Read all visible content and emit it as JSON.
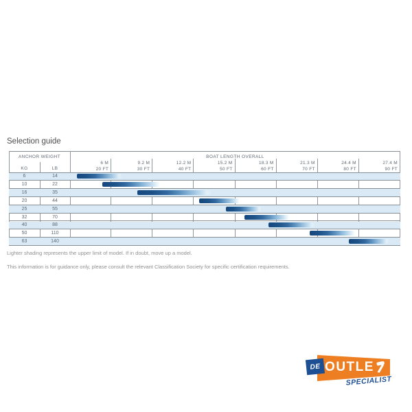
{
  "page": {
    "title": "Selection guide",
    "footnote1": "Lighter shading represents the upper limit of model. If in doubt, move up a model.",
    "footnote2": "This information is for guidance only, please consult the relevant Classification Society for specific certification requirements."
  },
  "chart_data": {
    "type": "bar",
    "subtype": "horizontal-range-gantt",
    "title": "Selection guide",
    "header": {
      "anchor_weight": "ANCHOR WEIGHT",
      "kg": "KG",
      "lb": "LB",
      "boat_length_overall": "BOAT LENGTH OVERALL"
    },
    "x_axis": {
      "ft_range": [
        10,
        90
      ],
      "gridlines": true,
      "ticks": [
        {
          "m": "6 M",
          "ft": "20 FT"
        },
        {
          "m": "9.2 M",
          "ft": "30 FT"
        },
        {
          "m": "12.2 M",
          "ft": "40 FT"
        },
        {
          "m": "15.2 M",
          "ft": "50 FT"
        },
        {
          "m": "18.3 M",
          "ft": "60 FT"
        },
        {
          "m": "21.3 M",
          "ft": "70 FT"
        },
        {
          "m": "24.4 M",
          "ft": "80 FT"
        },
        {
          "m": "27.4 M",
          "ft": "90 FT"
        }
      ]
    },
    "rows": [
      {
        "kg": "6",
        "lb": "14",
        "start_ft": 11.7,
        "end_ft": 22.6
      },
      {
        "kg": "10",
        "lb": "22",
        "start_ft": 17.9,
        "end_ft": 31.8
      },
      {
        "kg": "16",
        "lb": "35",
        "start_ft": 26.3,
        "end_ft": 44.5
      },
      {
        "kg": "20",
        "lb": "44",
        "start_ft": 41.2,
        "end_ft": 51.0
      },
      {
        "kg": "25",
        "lb": "55",
        "start_ft": 47.8,
        "end_ft": 56.4
      },
      {
        "kg": "32",
        "lb": "70",
        "start_ft": 52.3,
        "end_ft": 63.0
      },
      {
        "kg": "40",
        "lb": "88",
        "start_ft": 58.1,
        "end_ft": 69.3
      },
      {
        "kg": "50",
        "lb": "110",
        "start_ft": 68.0,
        "end_ft": 79.1
      },
      {
        "kg": "63",
        "lb": "140",
        "start_ft": 77.6,
        "end_ft": 87.4
      }
    ],
    "colors": {
      "bar_dark": "#15477d",
      "bar_light_fade": "#e3f0f9",
      "stripe_row": "#d9eaf6",
      "grid_line": "#8d959d",
      "text": "#5e6872"
    },
    "legend": "none"
  },
  "logo": {
    "de": "DE",
    "outlet": "OUTLET",
    "specialist": "SPECIALIST",
    "orange": "#ee7e22",
    "blue": "#1d4f93"
  }
}
